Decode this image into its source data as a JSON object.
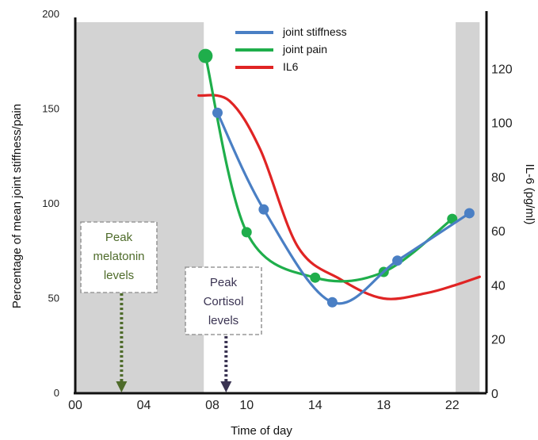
{
  "chart_data": {
    "type": "line",
    "xlabel": "Time of day",
    "ylabel_left": "Percentage of mean joint stiffness/pain",
    "ylabel_right": "IL-6 (pg/ml)",
    "x_ticks": [
      {
        "label": "00",
        "value": 0
      },
      {
        "label": "04",
        "value": 4
      },
      {
        "label": "08",
        "value": 8
      },
      {
        "label": "10",
        "value": 10
      },
      {
        "label": "14",
        "value": 14
      },
      {
        "label": "18",
        "value": 18
      },
      {
        "label": "22",
        "value": 22
      }
    ],
    "xlim": [
      0,
      24
    ],
    "ylim_left": [
      0,
      200
    ],
    "ylim_right": [
      0,
      140
    ],
    "y_left_ticks": [
      0,
      50,
      100,
      150,
      200
    ],
    "y_right_ticks": [
      0,
      20,
      40,
      60,
      80,
      100,
      120
    ],
    "shaded_regions": [
      [
        0,
        7.5
      ],
      [
        22.2,
        23.6
      ]
    ],
    "legend_position": "top-center",
    "series": [
      {
        "name": "joint stiffness",
        "color": "#4a7fc4",
        "axis": "left",
        "points": [
          [
            8.3,
            148
          ],
          [
            11,
            97
          ],
          [
            15,
            48
          ],
          [
            18.8,
            70
          ],
          [
            23,
            95
          ]
        ]
      },
      {
        "name": "joint pain",
        "color": "#1fae4b",
        "axis": "left",
        "points": [
          [
            7.6,
            178
          ],
          [
            10,
            85
          ],
          [
            14,
            61
          ],
          [
            18,
            64
          ],
          [
            22,
            92
          ]
        ]
      },
      {
        "name": "IL6",
        "color": "#e02424",
        "axis": "right",
        "curve": [
          [
            7.2,
            110
          ],
          [
            9,
            108
          ],
          [
            10.8,
            90
          ],
          [
            13,
            54
          ],
          [
            15.5,
            42
          ],
          [
            18,
            35
          ],
          [
            20.5,
            37
          ],
          [
            22.2,
            40
          ],
          [
            23.6,
            43
          ]
        ]
      }
    ],
    "annotations": [
      {
        "id": "melatonin",
        "lines": [
          "Peak",
          "melatonin",
          "levels"
        ],
        "arrow_x": 2.7,
        "color": "#4e6b2a"
      },
      {
        "id": "cortisol",
        "lines": [
          "Peak",
          "Cortisol",
          "levels"
        ],
        "arrow_x": 8.8,
        "color": "#3a3352"
      }
    ]
  }
}
